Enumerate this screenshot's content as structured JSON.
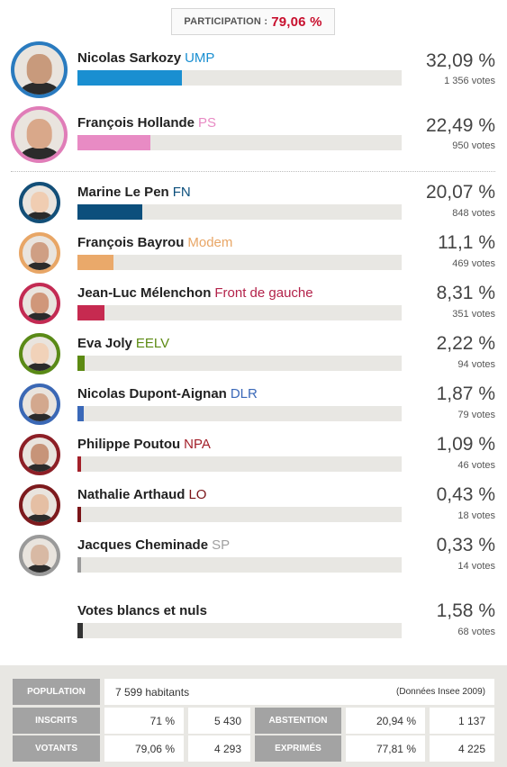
{
  "participation": {
    "label": "PARTICIPATION :",
    "value": "79,06 %"
  },
  "candidates": [
    {
      "name": "Nicolas Sarkozy",
      "party": "UMP",
      "party_color": "#1a8fd1",
      "bar_color": "#1a8fd1",
      "share": 32.09,
      "pct": "32,09 %",
      "votes": "1 356 votes",
      "skin": "#c89a7c",
      "bg": "#2a7bbf"
    },
    {
      "name": "François Hollande",
      "party": "PS",
      "party_color": "#e88bc4",
      "bar_color": "#e88bc4",
      "share": 22.49,
      "pct": "22,49 %",
      "votes": "950 votes",
      "skin": "#d9a88a",
      "bg": "#e07db8"
    },
    {
      "name": "Marine Le Pen",
      "party": "FN",
      "party_color": "#0c4f7c",
      "bar_color": "#0c4f7c",
      "share": 20.07,
      "pct": "20,07 %",
      "votes": "848 votes",
      "skin": "#f0cdb2",
      "bg": "#134f78"
    },
    {
      "name": "François Bayrou",
      "party": "Modem",
      "party_color": "#e8a666",
      "bar_color": "#eaa96a",
      "share": 11.1,
      "pct": "11,1 %",
      "votes": "469 votes",
      "skin": "#cf9f84",
      "bg": "#e8a666"
    },
    {
      "name": "Jean-Luc Mélenchon",
      "party": "Front de gauche",
      "party_color": "#b3224a",
      "bar_color": "#c62a50",
      "share": 8.31,
      "pct": "8,31 %",
      "votes": "351 votes",
      "skin": "#d0977a",
      "bg": "#c32b53"
    },
    {
      "name": "Eva Joly",
      "party": "EELV",
      "party_color": "#5c8a12",
      "bar_color": "#5c8a12",
      "share": 2.22,
      "pct": "2,22 %",
      "votes": "94 votes",
      "skin": "#f1d2b9",
      "bg": "#5a8a17"
    },
    {
      "name": "Nicolas Dupont-Aignan",
      "party": "DLR",
      "party_color": "#3a68b8",
      "bar_color": "#3a68b8",
      "share": 1.87,
      "pct": "1,87 %",
      "votes": "79 votes",
      "skin": "#d3a88e",
      "bg": "#3b68b5"
    },
    {
      "name": "Philippe Poutou",
      "party": "NPA",
      "party_color": "#a3202a",
      "bar_color": "#a3202a",
      "share": 1.09,
      "pct": "1,09 %",
      "votes": "46 votes",
      "skin": "#c79479",
      "bg": "#8d1f26"
    },
    {
      "name": "Nathalie Arthaud",
      "party": "LO",
      "party_color": "#7a1418",
      "bar_color": "#7a1418",
      "share": 0.43,
      "pct": "0,43 %",
      "votes": "18 votes",
      "skin": "#e5bfa4",
      "bg": "#7d1a1d"
    },
    {
      "name": "Jacques Cheminade",
      "party": "SP",
      "party_color": "#a0a0a0",
      "bar_color": "#9a9a9a",
      "share": 0.33,
      "pct": "0,33 %",
      "votes": "14 votes",
      "skin": "#d8b9a4",
      "bg": "#9a9a9a"
    },
    {
      "name": "Votes blancs et nuls",
      "party": "",
      "party_color": "#333333",
      "bar_color": "#333333",
      "share": 1.58,
      "pct": "1,58 %",
      "votes": "68 votes",
      "skin": "",
      "bg": ""
    }
  ],
  "stats": {
    "population_label": "POPULATION",
    "population_value": "7 599 habitants",
    "source": "(Données Insee 2009)",
    "inscrits_label": "INSCRITS",
    "inscrits_pct": "71 %",
    "inscrits_count": "5 430",
    "abstention_label": "ABSTENTION",
    "abstention_pct": "20,94 %",
    "abstention_count": "1 137",
    "votants_label": "VOTANTS",
    "votants_pct": "79,06 %",
    "votants_count": "4 293",
    "exprimes_label": "EXPRIMÉS",
    "exprimes_pct": "77,81 %",
    "exprimes_count": "4 225"
  }
}
